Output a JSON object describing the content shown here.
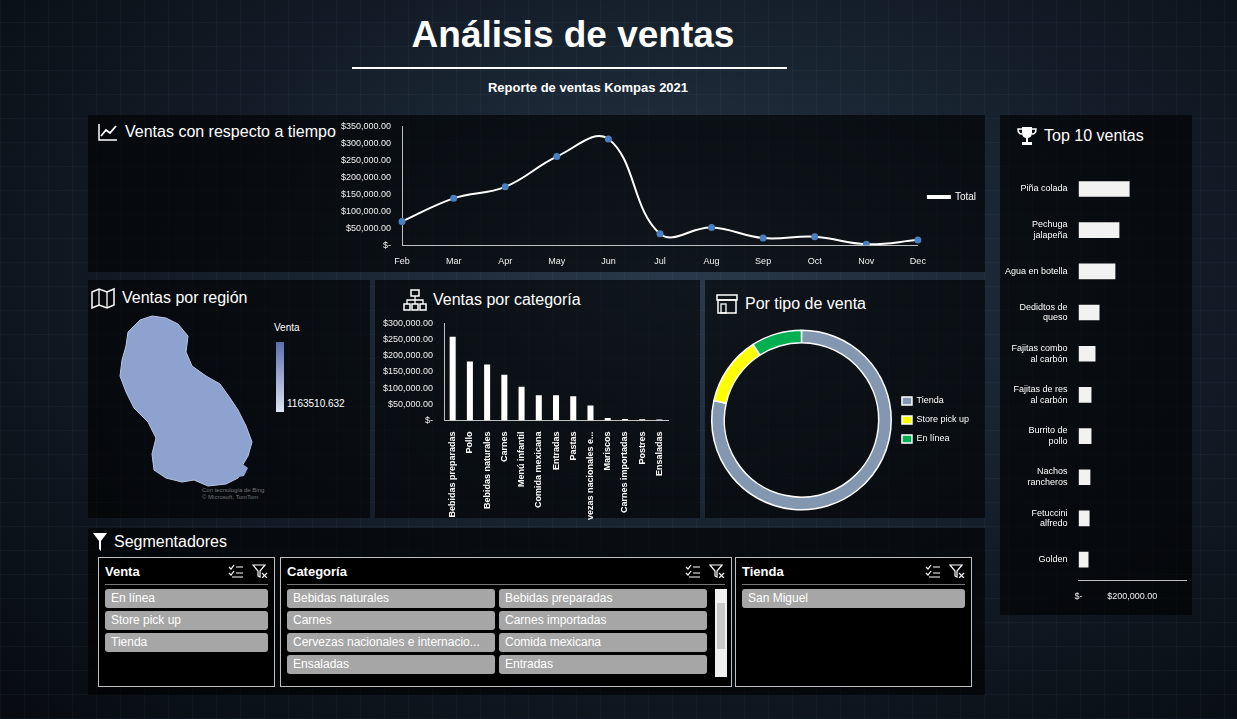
{
  "header": {
    "title": "Análisis de ventas",
    "subtitle": "Reporte de ventas Kompas 2021"
  },
  "chart_data": [
    {
      "type": "line",
      "title": "Ventas con respecto a tiempo",
      "categories": [
        "Feb",
        "Mar",
        "Apr",
        "May",
        "Jun",
        "Jul",
        "Aug",
        "Sep",
        "Oct",
        "Nov",
        "Dec"
      ],
      "series": [
        {
          "name": "Total",
          "color": "#ffffff",
          "marker": "circle",
          "line_style": "solid",
          "values": [
            70000,
            138000,
            172000,
            261000,
            313000,
            34000,
            52000,
            21000,
            25000,
            3000,
            15000
          ]
        }
      ],
      "ylim": [
        0,
        350000
      ],
      "yticks": [
        {
          "value": 0,
          "label": "$-"
        },
        {
          "value": 50000,
          "label": "$50,000.00"
        },
        {
          "value": 100000,
          "label": "$100,000.00"
        },
        {
          "value": 150000,
          "label": "$150,000.00"
        },
        {
          "value": 200000,
          "label": "$200,000.00"
        },
        {
          "value": 250000,
          "label": "$250,000.00"
        },
        {
          "value": 300000,
          "label": "$300,000.00"
        },
        {
          "value": 350000,
          "label": "$350,000.00"
        }
      ],
      "grid": false,
      "legend": "right"
    },
    {
      "type": "bar",
      "title": "Ventas por categoría",
      "categories": [
        "Bebidas preparadas",
        "Pollo",
        "Bebidas naturales",
        "Carnes",
        "Menú infantil",
        "Comida mexicana",
        "Entradas",
        "Pastas",
        "Cervezas nacionales e...",
        "Mariscos",
        "Carnes importadas",
        "Postres",
        "Ensaladas"
      ],
      "values": [
        259000,
        182000,
        173000,
        141000,
        104000,
        78000,
        78000,
        75000,
        46000,
        8000,
        5000,
        4000,
        3000
      ],
      "color": "#ffffff",
      "ylim": [
        0,
        300000
      ],
      "yticks": [
        {
          "value": 0,
          "label": "$-"
        },
        {
          "value": 50000,
          "label": "$50,000.00"
        },
        {
          "value": 100000,
          "label": "$100,000.00"
        },
        {
          "value": 150000,
          "label": "$150,000.00"
        },
        {
          "value": 200000,
          "label": "$200,000.00"
        },
        {
          "value": 250000,
          "label": "$250,000.00"
        },
        {
          "value": 300000,
          "label": "$300,000.00"
        }
      ],
      "grid": false
    },
    {
      "type": "doughnut",
      "title": "Por tipo de venta",
      "categories": [
        "Tienda",
        "Store pick up",
        "En línea"
      ],
      "values": [
        913000,
        145000,
        105500
      ],
      "colors": [
        "#8497b0",
        "#ffff00",
        "#00b050"
      ],
      "legend": "right"
    },
    {
      "type": "bar",
      "orientation": "horizontal",
      "title": "Top 10 ventas",
      "categories": [
        "Piña colada",
        "Pechuga jalapeña",
        "Agua en botella",
        "Dedidtos de queso",
        "Fajitas combo al carbón",
        "Fajitas de res al carbón",
        "Burrito de pollo",
        "Nachos rancheros",
        "Fetuccini alfredo",
        "Golden"
      ],
      "values": [
        190000,
        152000,
        137000,
        78000,
        63000,
        48000,
        48000,
        44000,
        41000,
        37000
      ],
      "color": "#f2f2f2",
      "xlim": [
        0,
        400000
      ],
      "xticks": [
        {
          "value": 0,
          "label": "$-"
        },
        {
          "value": 200000,
          "label": "$200,000.00"
        }
      ],
      "grid": false
    }
  ],
  "map": {
    "title": "Ventas por región",
    "legend_title": "Venta",
    "value": 1163510.632,
    "color": "#8ea2cf",
    "attribution": [
      "Con tecnología de Bing",
      "© Microsoft, TomTom"
    ]
  },
  "slicers": {
    "title": "Segmentadores",
    "panels": [
      {
        "title": "Venta",
        "items": [
          "En línea",
          "Store pick up",
          "Tienda"
        ]
      },
      {
        "title": "Categoría",
        "items": [
          "Bebidas naturales",
          "Bebidas preparadas",
          "Carnes",
          "Carnes importadas",
          "Cervezas nacionales e internacio...",
          "Comida mexicana",
          "Ensaladas",
          "Entradas"
        ]
      },
      {
        "title": "Tienda",
        "items": [
          "San Miguel"
        ]
      }
    ]
  }
}
